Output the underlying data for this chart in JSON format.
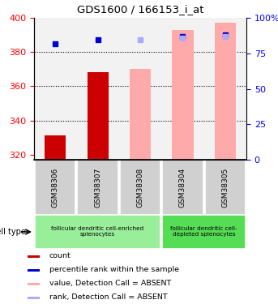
{
  "title": "GDS1600 / 166153_i_at",
  "samples": [
    "GSM38306",
    "GSM38307",
    "GSM38308",
    "GSM38304",
    "GSM38305"
  ],
  "bar_values": [
    331,
    368,
    370,
    393,
    397
  ],
  "bar_colors": [
    "#cc0000",
    "#cc0000",
    "#ffaaaa",
    "#ffaaaa",
    "#ffaaaa"
  ],
  "blue_squares": [
    385,
    387,
    null,
    389,
    390
  ],
  "light_blue_squares": [
    null,
    null,
    387,
    388,
    389
  ],
  "ylim_left": [
    317,
    400
  ],
  "ylim_right": [
    0,
    100
  ],
  "yticks_left": [
    320,
    340,
    360,
    380,
    400
  ],
  "yticks_right": [
    0,
    25,
    50,
    75,
    100
  ],
  "ytick_labels_right": [
    "0",
    "25",
    "50",
    "75",
    "100%"
  ],
  "cell_type_groups": [
    {
      "label": "follicular dendritic cell-enriched\nsplenocytes",
      "samples_idx": [
        0,
        1,
        2
      ],
      "color": "#99ee99"
    },
    {
      "label": "follicular dendritic cell-\ndepleted splenocytes",
      "samples_idx": [
        3,
        4
      ],
      "color": "#55dd55"
    }
  ],
  "legend_items": [
    {
      "label": "count",
      "color": "#cc0000"
    },
    {
      "label": "percentile rank within the sample",
      "color": "#0000cc"
    },
    {
      "label": "value, Detection Call = ABSENT",
      "color": "#ffaaaa"
    },
    {
      "label": "rank, Detection Call = ABSENT",
      "color": "#aaaaff"
    }
  ],
  "cell_type_label": "cell type",
  "bar_width": 0.5,
  "plot_bg_color": "#f2f2f2",
  "xlabel_box_color": "#d0d0d0",
  "grid_color": "#000000",
  "grid_linestyle": ":",
  "grid_linewidth": 0.8
}
